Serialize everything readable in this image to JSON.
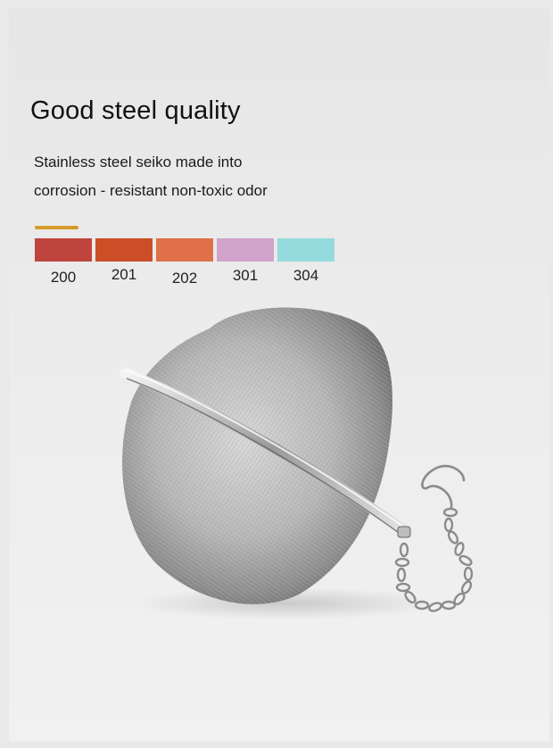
{
  "headline": "Good steel quality",
  "description": {
    "line1": "Stainless steel seiko made into",
    "line2": "corrosion - resistant non-toxic odor"
  },
  "accent_color": "#d49a2a",
  "grades": [
    {
      "label": "200",
      "color": "#c0443e"
    },
    {
      "label": "201",
      "color": "#cc4e26"
    },
    {
      "label": "202",
      "color": "#e0704a"
    },
    {
      "label": "301",
      "color": "#cfa3cc"
    },
    {
      "label": "304",
      "color": "#95dadd"
    }
  ],
  "product_image": {
    "icon": "mesh-tea-infuser-ball-with-chain"
  }
}
